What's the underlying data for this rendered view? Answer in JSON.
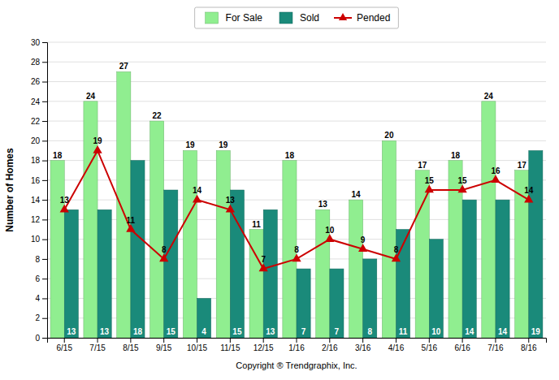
{
  "chart_data": {
    "type": "bar",
    "categories": [
      "6/15",
      "7/15",
      "8/15",
      "9/15",
      "10/15",
      "11/15",
      "12/15",
      "1/16",
      "2/16",
      "3/16",
      "4/16",
      "5/16",
      "6/16",
      "7/16",
      "8/16"
    ],
    "xlabel": "Copyright ® Trendgraphix, Inc.",
    "ylabel": "Number of Homes",
    "ylim": [
      0,
      30
    ],
    "yticks": [
      0,
      2,
      4,
      6,
      8,
      10,
      12,
      14,
      16,
      18,
      20,
      22,
      24,
      26,
      28,
      30
    ],
    "grid": true,
    "legend": "top",
    "data_labels": true,
    "series": [
      {
        "name": "For Sale",
        "type": "bar",
        "color": "#90ee90",
        "values": [
          18,
          24,
          27,
          22,
          19,
          19,
          11,
          18,
          13,
          14,
          20,
          17,
          18,
          24,
          17
        ]
      },
      {
        "name": "Sold",
        "type": "bar",
        "color": "#1a8a7a",
        "values": [
          13,
          13,
          18,
          15,
          4,
          15,
          13,
          7,
          7,
          8,
          11,
          10,
          14,
          14,
          19
        ]
      },
      {
        "name": "Pended",
        "type": "line",
        "color": "#cc0000",
        "marker": "triangle",
        "values": [
          13,
          19,
          11,
          8,
          14,
          13,
          7,
          8,
          10,
          9,
          8,
          15,
          15,
          16,
          14
        ]
      }
    ]
  }
}
